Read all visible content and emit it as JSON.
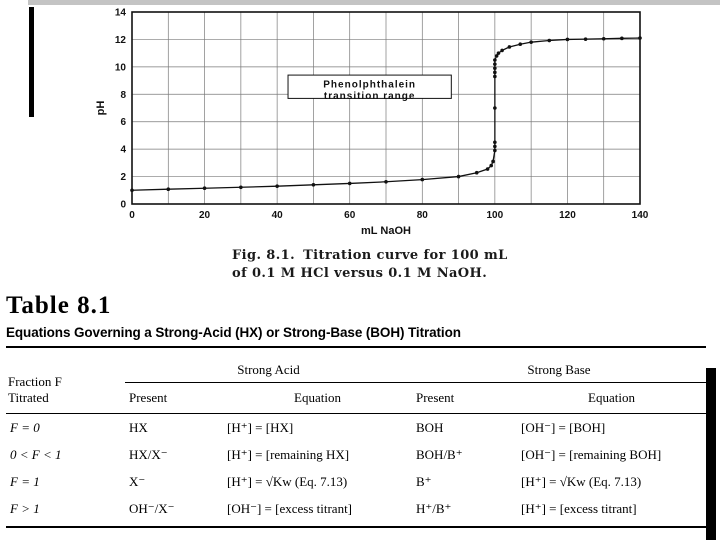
{
  "figure": {
    "caption_fig": "Fig. 8.1.",
    "caption_rest": "Titration curve for 100 mL",
    "caption_line2": "of 0.1 M HCl versus 0.1 M NaOH."
  },
  "chart_data": {
    "type": "line",
    "title": "Titration curve for 100 mL of 0.1 M HCl versus 0.1 M NaOH",
    "xlabel": "mL NaOH",
    "ylabel": "pH",
    "xlim": [
      0,
      140
    ],
    "ylim": [
      0,
      14
    ],
    "x_ticks": [
      0,
      20,
      40,
      60,
      80,
      100,
      120,
      140
    ],
    "y_ticks": [
      0,
      2,
      4,
      6,
      8,
      10,
      12,
      14
    ],
    "grid": {
      "x_step": 10,
      "y_step": 2,
      "on": true
    },
    "legend": "none",
    "points": [
      [
        0,
        1.0
      ],
      [
        10,
        1.08
      ],
      [
        20,
        1.15
      ],
      [
        30,
        1.22
      ],
      [
        40,
        1.3
      ],
      [
        50,
        1.4
      ],
      [
        60,
        1.5
      ],
      [
        70,
        1.62
      ],
      [
        80,
        1.78
      ],
      [
        90,
        2.0
      ],
      [
        95,
        2.28
      ],
      [
        98,
        2.55
      ],
      [
        99,
        2.8
      ],
      [
        99.5,
        3.1
      ],
      [
        100,
        3.9
      ],
      [
        100,
        4.2
      ],
      [
        100,
        4.5
      ],
      [
        100,
        7.0
      ],
      [
        100,
        9.3
      ],
      [
        100,
        9.6
      ],
      [
        100,
        9.9
      ],
      [
        100,
        10.2
      ],
      [
        100,
        10.5
      ],
      [
        100.5,
        10.8
      ],
      [
        101,
        11.0
      ],
      [
        102,
        11.2
      ],
      [
        104,
        11.45
      ],
      [
        107,
        11.65
      ],
      [
        110,
        11.8
      ],
      [
        115,
        11.92
      ],
      [
        120,
        12.0
      ],
      [
        125,
        12.02
      ],
      [
        130,
        12.05
      ],
      [
        135,
        12.08
      ],
      [
        140,
        12.1
      ]
    ],
    "annotation": {
      "text_lines": [
        "Phenolphthalein",
        "transition range"
      ],
      "x_range": [
        43,
        88
      ],
      "y_range": [
        7.7,
        9.4
      ]
    }
  },
  "table": {
    "label": "Table 8.1",
    "title": "Equations Governing a Strong-Acid (HX) or Strong-Base (BOH) Titration",
    "group_acid": "Strong Acid",
    "group_base": "Strong Base",
    "row_header_line1": "Fraction F",
    "row_header_line2": "Titrated",
    "sub_present_acid": "Present",
    "sub_equation_acid": "Equation",
    "sub_present_base": "Present",
    "sub_equation_base": "Equation",
    "rows": [
      {
        "fraction": "F = 0",
        "acid_present": "HX",
        "acid_equation": "[H⁺] = [HX]",
        "base_present": "BOH",
        "base_equation": "[OH⁻] = [BOH]"
      },
      {
        "fraction": "0 < F < 1",
        "acid_present": "HX/X⁻",
        "acid_equation": "[H⁺] = [remaining HX]",
        "base_present": "BOH/B⁺",
        "base_equation": "[OH⁻] = [remaining BOH]"
      },
      {
        "fraction": "F = 1",
        "acid_present": "X⁻",
        "acid_equation": "[H⁺] = √Kw (Eq. 7.13)",
        "base_present": "B⁺",
        "base_equation": "[H⁺] = √Kw (Eq. 7.13)"
      },
      {
        "fraction": "F > 1",
        "acid_present": "OH⁻/X⁻",
        "acid_equation": "[OH⁻] = [excess titrant]",
        "base_present": "H⁺/B⁺",
        "base_equation": "[H⁺] = [excess titrant]"
      }
    ]
  }
}
